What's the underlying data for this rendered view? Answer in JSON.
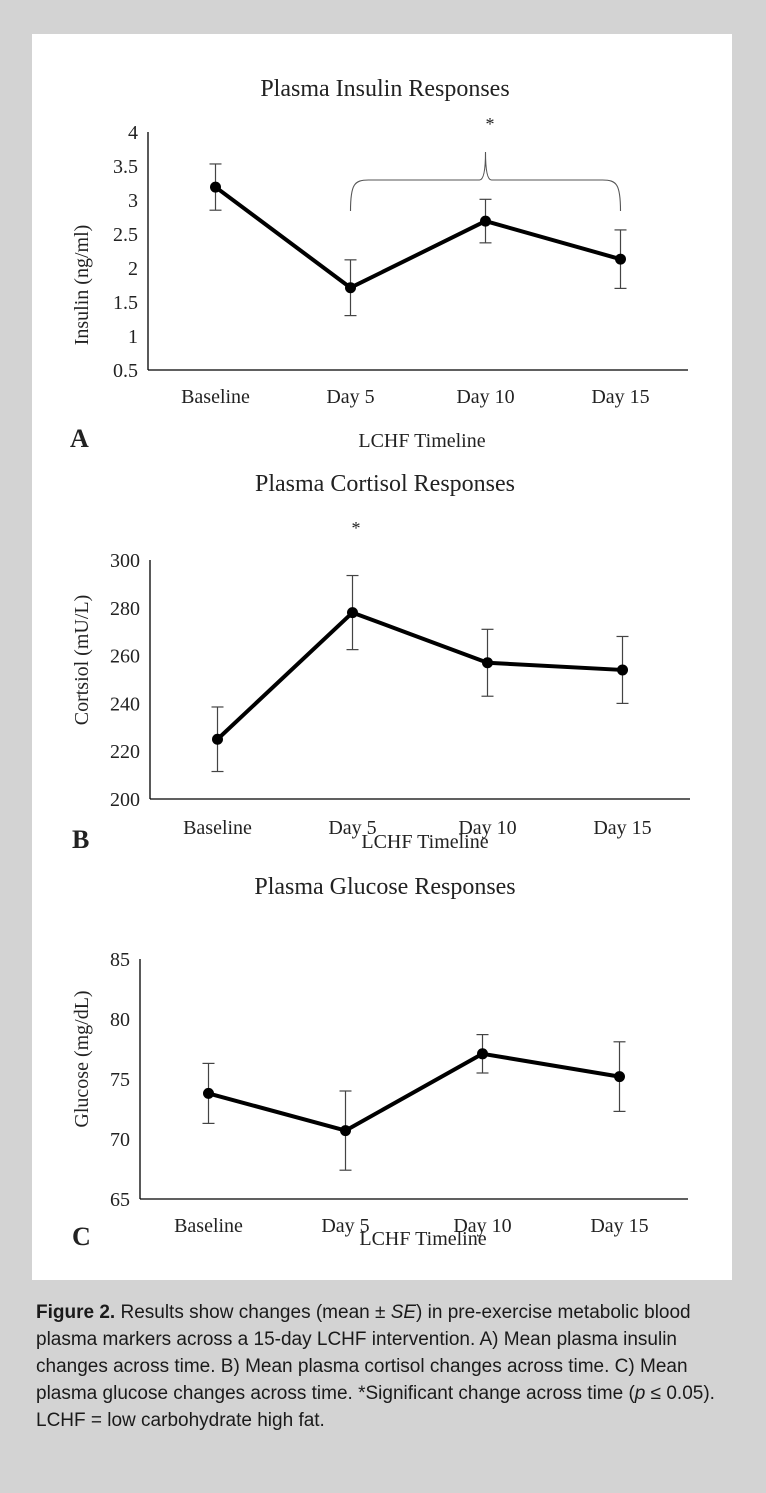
{
  "caption": {
    "label": "Figure 2.",
    "text_a": " Results show changes (mean ± ",
    "se": "SE",
    "text_b": ") in pre-exercise metabolic blood plasma markers across a 15-day LCHF intervention. A) Mean plasma insulin changes across time. B) Mean plasma cortisol changes across time. C) Mean plasma glucose changes across time. *Significant change across time (",
    "p": "p",
    "text_c": " ≤ 0.05). LCHF = low carbohydrate high fat."
  },
  "chart_data": [
    {
      "panel": "A",
      "type": "line",
      "title": "Plasma Insulin Responses",
      "xlabel": "LCHF Timeline",
      "ylabel": "Insulin (ng/ml)",
      "categories": [
        "Baseline",
        "Day 5",
        "Day 10",
        "Day 15"
      ],
      "values": [
        3.19,
        1.71,
        2.69,
        2.13
      ],
      "errors": [
        0.34,
        0.41,
        0.32,
        0.43
      ],
      "ylim": [
        0.5,
        4
      ],
      "yticks": [
        "0.5",
        "1",
        "1.5",
        "2",
        "2.5",
        "3",
        "3.5",
        "4"
      ],
      "annotation": "*",
      "bracket_categories": [
        "Day 5",
        "Day 15"
      ],
      "color": "#000000"
    },
    {
      "panel": "B",
      "type": "line",
      "title": "Plasma Cortisol Responses",
      "xlabel": "LCHF Timeline",
      "ylabel": "Cortsiol (mU/L)",
      "categories": [
        "Baseline",
        "Day 5",
        "Day 10",
        "Day 15"
      ],
      "values": [
        225,
        278,
        257,
        254
      ],
      "errors": [
        13.5,
        15.5,
        14,
        14
      ],
      "ylim": [
        200,
        300
      ],
      "yticks": [
        "200",
        "220",
        "240",
        "260",
        "280",
        "300"
      ],
      "annotation": "*",
      "annotation_category": "Day 5",
      "color": "#000000"
    },
    {
      "panel": "C",
      "type": "line",
      "title": "Plasma Glucose Responses",
      "xlabel": "LCHF Timeline",
      "ylabel": "Glucose (mg/dL)",
      "categories": [
        "Baseline",
        "Day 5",
        "Day 10",
        "Day 15"
      ],
      "values": [
        73.8,
        70.7,
        77.1,
        75.2
      ],
      "errors": [
        2.5,
        3.3,
        1.6,
        2.9
      ],
      "ylim": [
        65,
        85
      ],
      "yticks": [
        "65",
        "70",
        "75",
        "80",
        "85"
      ],
      "color": "#000000"
    }
  ]
}
